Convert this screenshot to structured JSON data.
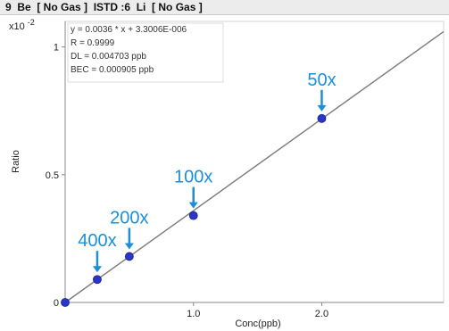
{
  "header": {
    "title": "9  Be  [ No Gas ]  ISTD :6  Li  [ No Gas ]"
  },
  "chart_data": {
    "type": "scatter",
    "xlabel": "Conc(ppb)",
    "ylabel": "Ratio",
    "y_multiplier": "x10 -2",
    "xlim": [
      0,
      2.95
    ],
    "ylim": [
      0,
      1.1
    ],
    "x_ticks": [
      {
        "value": 1.0,
        "label": "1.0"
      },
      {
        "value": 2.0,
        "label": "2.0"
      }
    ],
    "y_ticks": [
      {
        "value": 0,
        "label": "0"
      },
      {
        "value": 0.5,
        "label": "0.5"
      },
      {
        "value": 1.0,
        "label": "1"
      }
    ],
    "points": [
      {
        "x": 0.0,
        "y": 0.0
      },
      {
        "x": 0.25,
        "y": 0.09
      },
      {
        "x": 0.5,
        "y": 0.18
      },
      {
        "x": 1.0,
        "y": 0.34
      },
      {
        "x": 2.0,
        "y": 0.72
      }
    ],
    "fit_line": {
      "x": [
        0.0,
        2.95
      ],
      "y": [
        0.0,
        1.06
      ]
    },
    "stats": [
      "y = 0.0036 * x  + 3.3006E-006",
      "R = 0.9999",
      "DL = 0.004703 ppb",
      "BEC = 0.000905 ppb"
    ],
    "annotations": [
      {
        "label": "400x",
        "x": 0.25,
        "y": 0.09
      },
      {
        "label": "200x",
        "x": 0.5,
        "y": 0.18
      },
      {
        "label": "100x",
        "x": 1.0,
        "y": 0.34
      },
      {
        "label": "50x",
        "x": 2.0,
        "y": 0.72
      }
    ],
    "colors": {
      "point_fill": "#2a35c9",
      "fit_line": "#7a7a7a",
      "annotation": "#1d8fd6",
      "axis": "#888888"
    },
    "grid": false
  }
}
